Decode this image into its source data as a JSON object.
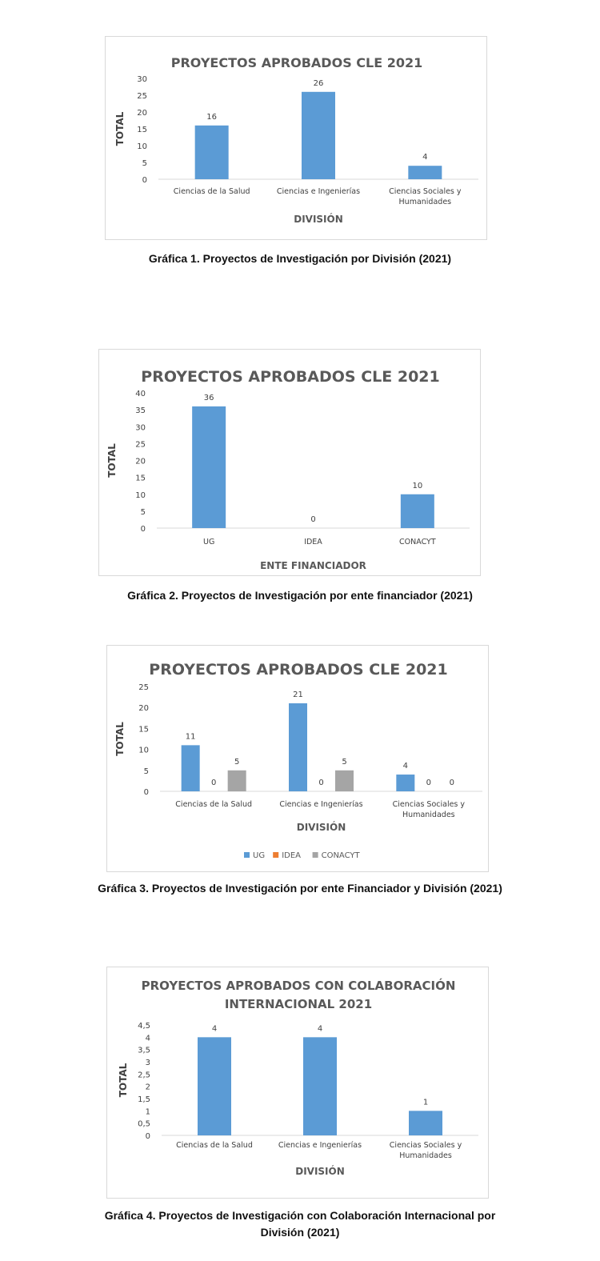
{
  "chart_data": [
    {
      "type": "bar",
      "title": "PROYECTOS  APROBADOS CLE 2021",
      "xlabel": "DIVISIÓN",
      "ylabel": "TOTAL",
      "categories": [
        "Ciencias de la Salud",
        "Ciencias e Ingenierías",
        "Ciencias Sociales y|Humanidades"
      ],
      "series": [
        {
          "values": [
            16,
            26,
            4
          ],
          "color": "#5b9bd5"
        }
      ],
      "ylim": [
        0,
        30
      ],
      "yticks": [
        "0",
        "5",
        "10",
        "15",
        "20",
        "25",
        "30"
      ],
      "ytick_values": [
        0,
        5,
        10,
        15,
        20,
        25,
        30
      ],
      "data_labels": true,
      "grid": false,
      "legend": false,
      "caption": "Gráfica 1. Proyectos de Investigación por División (2021)"
    },
    {
      "type": "bar",
      "title": "PROYECTOS APROBADOS CLE 2021",
      "xlabel": "ENTE FINANCIADOR",
      "ylabel": "TOTAL",
      "categories": [
        "UG",
        "IDEA",
        "CONACYT"
      ],
      "series": [
        {
          "values": [
            36,
            0,
            10
          ],
          "color": "#5b9bd5"
        }
      ],
      "ylim": [
        0,
        40
      ],
      "yticks": [
        "0",
        "5",
        "10",
        "15",
        "20",
        "25",
        "30",
        "35",
        "40"
      ],
      "ytick_values": [
        0,
        5,
        10,
        15,
        20,
        25,
        30,
        35,
        40
      ],
      "data_labels": true,
      "grid": false,
      "legend": false,
      "caption": "Gráfica 2. Proyectos de Investigación por ente financiador (2021)"
    },
    {
      "type": "bar",
      "title": "PROYECTOS APROBADOS CLE 2021",
      "xlabel": "DIVISIÓN",
      "ylabel": "TOTAL",
      "categories": [
        "Ciencias de la Salud",
        "Ciencias e Ingenierías",
        "Ciencias Sociales y|Humanidades"
      ],
      "series": [
        {
          "name": "UG",
          "values": [
            11,
            21,
            4
          ],
          "color": "#5b9bd5"
        },
        {
          "name": "IDEA",
          "values": [
            0,
            0,
            0
          ],
          "color": "#ed7d31"
        },
        {
          "name": "CONACYT",
          "values": [
            5,
            5,
            0
          ],
          "color": "#a5a5a5"
        }
      ],
      "ylim": [
        0,
        25
      ],
      "yticks": [
        "0",
        "5",
        "10",
        "15",
        "20",
        "25"
      ],
      "ytick_values": [
        0,
        5,
        10,
        15,
        20,
        25
      ],
      "data_labels": true,
      "grid": false,
      "legend": "bottom",
      "caption": "Gráfica 3. Proyectos de Investigación por ente Financiador y División (2021)"
    },
    {
      "type": "bar",
      "title": "PROYECTOS APROBADOS CON COLABORACIÓN|INTERNACIONAL 2021",
      "xlabel": "DIVISIÓN",
      "ylabel": "TOTAL",
      "categories": [
        "Ciencias de la Salud",
        "Ciencias e Ingenierías",
        "Ciencias Sociales y|Humanidades"
      ],
      "series": [
        {
          "values": [
            4,
            4,
            1
          ],
          "color": "#5b9bd5"
        }
      ],
      "ylim": [
        0,
        4.5
      ],
      "yticks": [
        "0",
        "0,5",
        "1",
        "1,5",
        "2",
        "2,5",
        "3",
        "3,5",
        "4",
        "4,5"
      ],
      "ytick_values": [
        0,
        0.5,
        1,
        1.5,
        2,
        2.5,
        3,
        3.5,
        4,
        4.5
      ],
      "data_labels": true,
      "grid": false,
      "legend": false,
      "caption": "Gráfica 4. Proyectos de Investigación con Colaboración Internacional por|División (2021)"
    }
  ]
}
